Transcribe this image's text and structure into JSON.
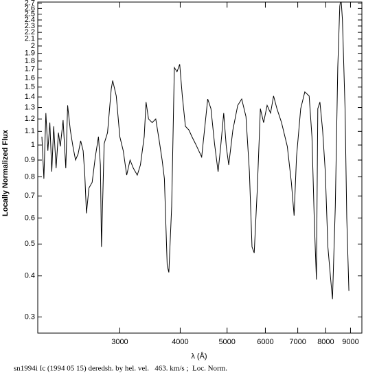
{
  "chart_data": {
    "type": "line",
    "x_label": "λ (Å)",
    "y_label": "Locally Normalized Flux",
    "caption": "sn1994i Ic (1994 05 15) deredsh. by hel. vel.   463. km/s ;  Loc. Norm.",
    "x_log": true,
    "y_log": true,
    "xlim": [
      2030,
      9500
    ],
    "ylim": [
      0.268,
      2.72
    ],
    "xticks": [
      3000,
      4000,
      5000,
      6000,
      7000,
      8000,
      9000
    ],
    "yticks": [
      0.3,
      0.4,
      0.5,
      0.6,
      0.7,
      0.8,
      0.9,
      1,
      1.1,
      1.2,
      1.3,
      1.4,
      1.5,
      1.6,
      1.7,
      1.8,
      1.9,
      2,
      2.1,
      2.2,
      2.3,
      2.4,
      2.5,
      2.6,
      2.7
    ],
    "series": [
      {
        "color": "#000000",
        "x": [
          2070,
          2090,
          2110,
          2130,
          2150,
          2170,
          2190,
          2215,
          2240,
          2260,
          2290,
          2320,
          2340,
          2370,
          2400,
          2430,
          2460,
          2490,
          2520,
          2540,
          2560,
          2590,
          2630,
          2670,
          2710,
          2735,
          2750,
          2785,
          2830,
          2880,
          2900,
          2950,
          3000,
          3050,
          3100,
          3150,
          3200,
          3260,
          3310,
          3370,
          3400,
          3440,
          3500,
          3560,
          3620,
          3670,
          3710,
          3760,
          3790,
          3840,
          3890,
          3940,
          3990,
          4040,
          4100,
          4170,
          4230,
          4300,
          4370,
          4430,
          4490,
          4560,
          4630,
          4710,
          4790,
          4850,
          4920,
          4980,
          5040,
          5140,
          5260,
          5360,
          5470,
          5560,
          5630,
          5690,
          5770,
          5860,
          5950,
          6050,
          6150,
          6240,
          6340,
          6480,
          6660,
          6790,
          6880,
          6960,
          7100,
          7240,
          7390,
          7490,
          7580,
          7650,
          7700,
          7780,
          7880,
          7980,
          8080,
          8190,
          8260,
          8370,
          8470,
          8550,
          8600,
          8660,
          8770,
          8840,
          8930
        ],
        "values": [
          1.06,
          0.79,
          1.25,
          0.96,
          1.17,
          0.83,
          1.14,
          0.85,
          1.09,
          0.99,
          1.19,
          0.85,
          1.32,
          1.11,
          0.99,
          0.9,
          0.94,
          1.03,
          0.96,
          0.81,
          0.62,
          0.74,
          0.77,
          0.92,
          1.06,
          0.87,
          0.49,
          1.01,
          1.09,
          1.48,
          1.57,
          1.41,
          1.06,
          0.96,
          0.81,
          0.9,
          0.85,
          0.81,
          0.87,
          1.06,
          1.35,
          1.2,
          1.17,
          1.2,
          1.03,
          0.9,
          0.79,
          0.43,
          0.41,
          0.65,
          1.72,
          1.67,
          1.76,
          1.41,
          1.14,
          1.11,
          1.06,
          1.01,
          0.96,
          0.92,
          1.11,
          1.38,
          1.29,
          1.01,
          0.83,
          0.99,
          1.25,
          0.99,
          0.87,
          1.11,
          1.32,
          1.38,
          1.22,
          0.83,
          0.49,
          0.47,
          0.72,
          1.29,
          1.17,
          1.32,
          1.25,
          1.41,
          1.29,
          1.17,
          0.99,
          0.77,
          0.61,
          0.92,
          1.29,
          1.45,
          1.41,
          1.06,
          0.57,
          0.39,
          1.29,
          1.35,
          1.11,
          0.83,
          0.49,
          0.39,
          0.34,
          0.65,
          1.72,
          2.64,
          2.8,
          2.4,
          1.29,
          0.6,
          0.36
        ]
      }
    ]
  }
}
